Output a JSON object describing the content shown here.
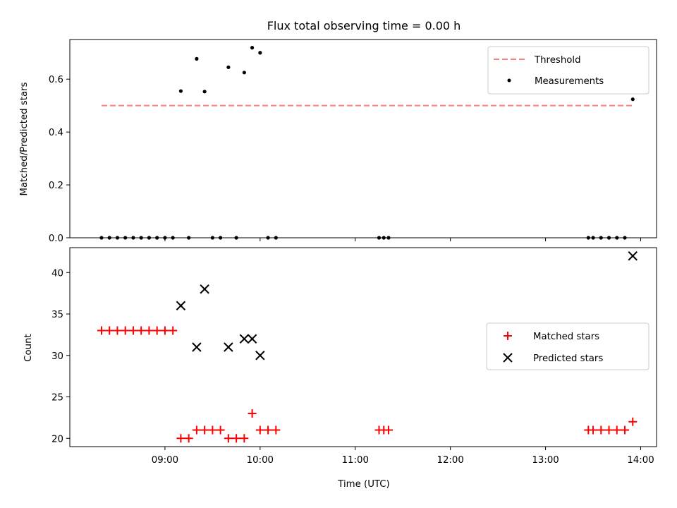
{
  "chart_data": [
    {
      "type": "scatter",
      "title": "Flux total observing time = 0.00 h",
      "xlabel": "",
      "ylabel": "Matched/Predicted stars",
      "ylim": [
        0,
        0.75
      ],
      "yticks": [
        "0.0",
        "0.2",
        "0.4",
        "0.6"
      ],
      "ytick_values": [
        0,
        0.2,
        0.4,
        0.6
      ],
      "legend_position": "top-right",
      "threshold": {
        "name": "Threshold",
        "value": 0.5,
        "x_start": "08:20",
        "x_end": "13:55",
        "color": "#ff7f7f"
      },
      "series": [
        {
          "name": "Measurements",
          "color": "#000000",
          "points": [
            [
              "08:20",
              0.0
            ],
            [
              "08:25",
              0.0
            ],
            [
              "08:30",
              0.0
            ],
            [
              "08:35",
              0.0
            ],
            [
              "08:40",
              0.0
            ],
            [
              "08:45",
              0.0
            ],
            [
              "08:50",
              0.0
            ],
            [
              "08:55",
              0.0
            ],
            [
              "09:00",
              0.0
            ],
            [
              "09:05",
              0.0
            ],
            [
              "09:10",
              0.555
            ],
            [
              "09:15",
              0.0
            ],
            [
              "09:20",
              0.677
            ],
            [
              "09:25",
              0.553
            ],
            [
              "09:30",
              0.0
            ],
            [
              "09:35",
              0.0
            ],
            [
              "09:40",
              0.645
            ],
            [
              "09:45",
              0.0
            ],
            [
              "09:50",
              0.625
            ],
            [
              "09:55",
              0.719
            ],
            [
              "10:00",
              0.7
            ],
            [
              "10:05",
              0.0
            ],
            [
              "10:10",
              0.0
            ],
            [
              "11:15",
              0.0
            ],
            [
              "11:18",
              0.0
            ],
            [
              "11:21",
              0.0
            ],
            [
              "13:27",
              0.0
            ],
            [
              "13:30",
              0.0
            ],
            [
              "13:35",
              0.0
            ],
            [
              "13:40",
              0.0
            ],
            [
              "13:45",
              0.0
            ],
            [
              "13:50",
              0.0
            ],
            [
              "13:55",
              0.524
            ]
          ]
        }
      ]
    },
    {
      "type": "scatter",
      "title": "",
      "xlabel": "Time (UTC)",
      "ylabel": "Count",
      "ylim": [
        19,
        43
      ],
      "yticks": [
        "20",
        "25",
        "30",
        "35",
        "40"
      ],
      "ytick_values": [
        20,
        25,
        30,
        35,
        40
      ],
      "xlim": [
        "08:00",
        "14:10"
      ],
      "xticks": [
        "09:00",
        "10:00",
        "11:00",
        "12:00",
        "13:00",
        "14:00"
      ],
      "legend_position": "right",
      "series": [
        {
          "name": "Matched stars",
          "marker": "plus",
          "color": "#ff0000",
          "points": [
            [
              "08:20",
              33
            ],
            [
              "08:25",
              33
            ],
            [
              "08:30",
              33
            ],
            [
              "08:35",
              33
            ],
            [
              "08:40",
              33
            ],
            [
              "08:45",
              33
            ],
            [
              "08:50",
              33
            ],
            [
              "08:55",
              33
            ],
            [
              "09:00",
              33
            ],
            [
              "09:05",
              33
            ],
            [
              "09:10",
              20
            ],
            [
              "09:15",
              20
            ],
            [
              "09:20",
              21
            ],
            [
              "09:25",
              21
            ],
            [
              "09:30",
              21
            ],
            [
              "09:35",
              21
            ],
            [
              "09:40",
              20
            ],
            [
              "09:45",
              20
            ],
            [
              "09:50",
              20
            ],
            [
              "09:55",
              23
            ],
            [
              "10:00",
              21
            ],
            [
              "10:05",
              21
            ],
            [
              "10:10",
              21
            ],
            [
              "11:15",
              21
            ],
            [
              "11:18",
              21
            ],
            [
              "11:21",
              21
            ],
            [
              "13:27",
              21
            ],
            [
              "13:30",
              21
            ],
            [
              "13:35",
              21
            ],
            [
              "13:40",
              21
            ],
            [
              "13:45",
              21
            ],
            [
              "13:50",
              21
            ],
            [
              "13:55",
              22
            ]
          ]
        },
        {
          "name": "Predicted stars",
          "marker": "x",
          "color": "#000000",
          "points": [
            [
              "09:10",
              36
            ],
            [
              "09:20",
              31
            ],
            [
              "09:25",
              38
            ],
            [
              "09:40",
              31
            ],
            [
              "09:50",
              32
            ],
            [
              "09:55",
              32
            ],
            [
              "10:00",
              30
            ],
            [
              "13:55",
              42
            ]
          ]
        }
      ]
    }
  ]
}
